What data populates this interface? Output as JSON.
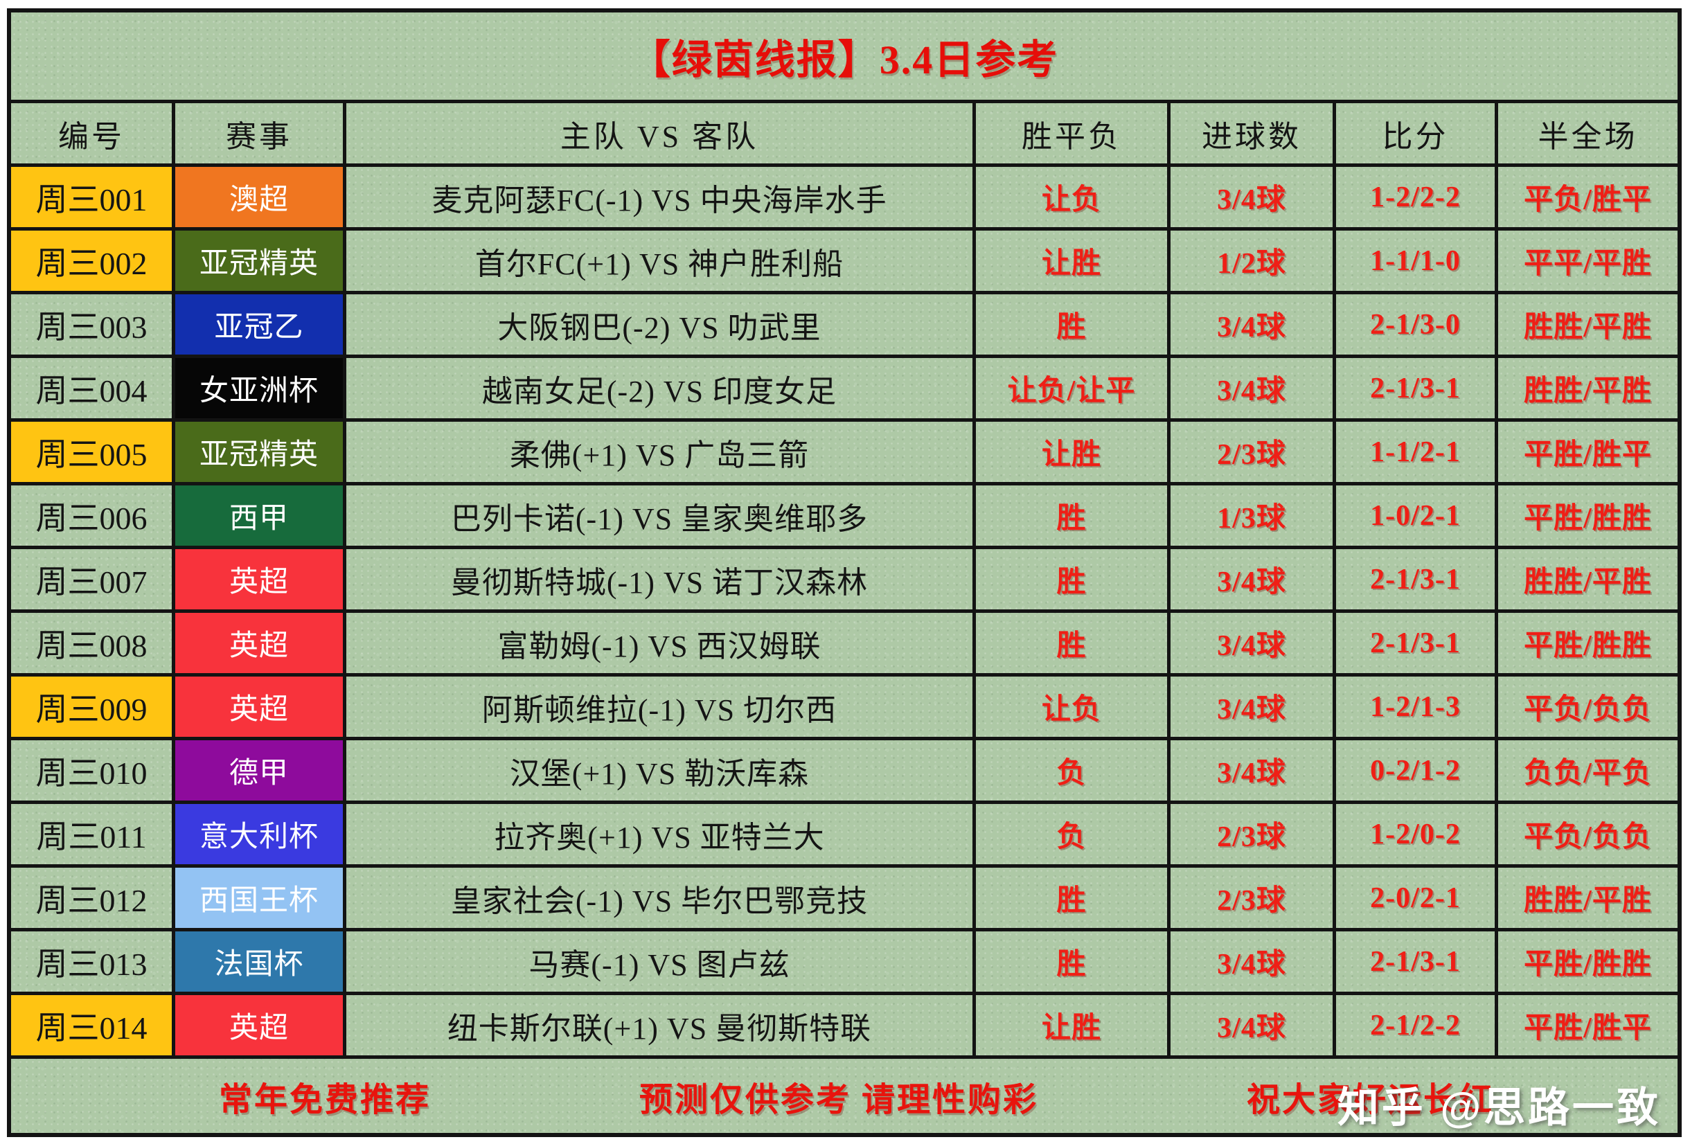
{
  "title": "【绿茵线报】3.4日参考",
  "header": {
    "col_id": "编号",
    "col_league": "赛事",
    "col_match": "主队 VS 客队",
    "col_wdl": "胜平负",
    "col_goals": "进球数",
    "col_score": "比分",
    "col_htft": "半全场"
  },
  "rows": [
    {
      "id": "周三001",
      "id_gold": true,
      "league": "澳超",
      "league_bg": "#f07620",
      "league_fg": "#ffffff",
      "match": "麦克阿瑟FC(-1)  VS  中央海岸水手",
      "wdl": "让负",
      "goals": "3/4球",
      "score": "1-2/2-2",
      "htft": "平负/胜平"
    },
    {
      "id": "周三002",
      "id_gold": true,
      "league": "亚冠精英",
      "league_bg": "#4a6b1a",
      "league_fg": "#ffffff",
      "match": "首尔FC(+1)  VS  神户胜利船",
      "wdl": "让胜",
      "goals": "1/2球",
      "score": "1-1/1-0",
      "htft": "平平/平胜"
    },
    {
      "id": "周三003",
      "id_gold": false,
      "league": "亚冠乙",
      "league_bg": "#122fae",
      "league_fg": "#ffffff",
      "match": "大阪钢巴(-2)  VS  叻武里",
      "wdl": "胜",
      "goals": "3/4球",
      "score": "2-1/3-0",
      "htft": "胜胜/平胜"
    },
    {
      "id": "周三004",
      "id_gold": false,
      "league": "女亚洲杯",
      "league_bg": "#060606",
      "league_fg": "#ffffff",
      "match": "越南女足(-2)  VS  印度女足",
      "wdl": "让负/让平",
      "goals": "3/4球",
      "score": "2-1/3-1",
      "htft": "胜胜/平胜"
    },
    {
      "id": "周三005",
      "id_gold": true,
      "league": "亚冠精英",
      "league_bg": "#4a6b1a",
      "league_fg": "#ffffff",
      "match": "柔佛(+1)  VS  广岛三箭",
      "wdl": "让胜",
      "goals": "2/3球",
      "score": "1-1/2-1",
      "htft": "平胜/胜平"
    },
    {
      "id": "周三006",
      "id_gold": false,
      "league": "西甲",
      "league_bg": "#176b3c",
      "league_fg": "#ffffff",
      "match": "巴列卡诺(-1)  VS  皇家奥维耶多",
      "wdl": "胜",
      "goals": "1/3球",
      "score": "1-0/2-1",
      "htft": "平胜/胜胜"
    },
    {
      "id": "周三007",
      "id_gold": false,
      "league": "英超",
      "league_bg": "#f8333c",
      "league_fg": "#ffffff",
      "match": "曼彻斯特城(-1)  VS  诺丁汉森林",
      "wdl": "胜",
      "goals": "3/4球",
      "score": "2-1/3-1",
      "htft": "胜胜/平胜"
    },
    {
      "id": "周三008",
      "id_gold": false,
      "league": "英超",
      "league_bg": "#f8333c",
      "league_fg": "#ffffff",
      "match": "富勒姆(-1)  VS  西汉姆联",
      "wdl": "胜",
      "goals": "3/4球",
      "score": "2-1/3-1",
      "htft": "平胜/胜胜"
    },
    {
      "id": "周三009",
      "id_gold": true,
      "league": "英超",
      "league_bg": "#f8333c",
      "league_fg": "#ffffff",
      "match": "阿斯顿维拉(-1)  VS  切尔西",
      "wdl": "让负",
      "goals": "3/4球",
      "score": "1-2/1-3",
      "htft": "平负/负负"
    },
    {
      "id": "周三010",
      "id_gold": false,
      "league": "德甲",
      "league_bg": "#8e0b9c",
      "league_fg": "#ffffff",
      "match": "汉堡(+1)  VS  勒沃库森",
      "wdl": "负",
      "goals": "3/4球",
      "score": "0-2/1-2",
      "htft": "负负/平负"
    },
    {
      "id": "周三011",
      "id_gold": false,
      "league": "意大利杯",
      "league_bg": "#3a3ae0",
      "league_fg": "#ffffff",
      "match": "拉齐奥(+1)  VS  亚特兰大",
      "wdl": "负",
      "goals": "2/3球",
      "score": "1-2/0-2",
      "htft": "平负/负负"
    },
    {
      "id": "周三012",
      "id_gold": false,
      "league": "西国王杯",
      "league_bg": "#93c3f3",
      "league_fg": "#ffffff",
      "match": "皇家社会(-1)  VS  毕尔巴鄂竞技",
      "wdl": "胜",
      "goals": "2/3球",
      "score": "2-0/2-1",
      "htft": "胜胜/平胜"
    },
    {
      "id": "周三013",
      "id_gold": false,
      "league": "法国杯",
      "league_bg": "#2e78ab",
      "league_fg": "#ffffff",
      "match": "马赛(-1)  VS  图卢兹",
      "wdl": "胜",
      "goals": "3/4球",
      "score": "2-1/3-1",
      "htft": "平胜/胜胜"
    },
    {
      "id": "周三014",
      "id_gold": true,
      "league": "英超",
      "league_bg": "#f8333c",
      "league_fg": "#ffffff",
      "match": "纽卡斯尔联(+1)  VS  曼彻斯特联",
      "wdl": "让胜",
      "goals": "3/4球",
      "score": "2-1/2-2",
      "htft": "平胜/胜平"
    }
  ],
  "footer": {
    "left": "常年免费推荐",
    "center": "预测仅供参考  请理性购彩",
    "right": "祝大家好运长红"
  },
  "watermark": "知乎 @思路一致",
  "colors": {
    "board_bg": "#aec9a6",
    "grid_line": "#131313",
    "gold": "#ffc412",
    "title_red": "#e60e09",
    "pick_red": "#ef1f16",
    "footer_red": "#e8140d",
    "text_black": "#141414",
    "watermark_white": "#ffffff"
  }
}
